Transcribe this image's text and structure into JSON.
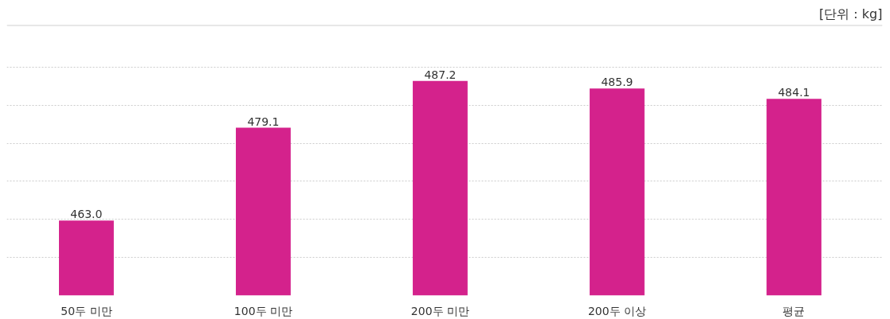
{
  "chart_data": {
    "type": "bar",
    "categories": [
      "50두 미만",
      "100두 미만",
      "200두 미만",
      "200두 이상",
      "평균"
    ],
    "values": [
      463.0,
      479.1,
      487.2,
      485.9,
      484.1
    ],
    "value_labels": [
      "463.0",
      "479.1",
      "487.2",
      "485.9",
      "484.1"
    ],
    "color": "#d4228c",
    "ylim": [
      450,
      496.9
    ],
    "yticks": [
      {
        "value": 456.6,
        "label": null
      },
      {
        "value": 463.2,
        "label": null
      },
      {
        "value": 469.8,
        "label": null
      },
      {
        "value": 476.4,
        "label": null
      },
      {
        "value": 483,
        "label": null
      },
      {
        "value": 489.6,
        "label": null
      }
    ],
    "grid": "y",
    "tick_labels": "x",
    "annotations": [
      "[단위 : kg]"
    ]
  }
}
